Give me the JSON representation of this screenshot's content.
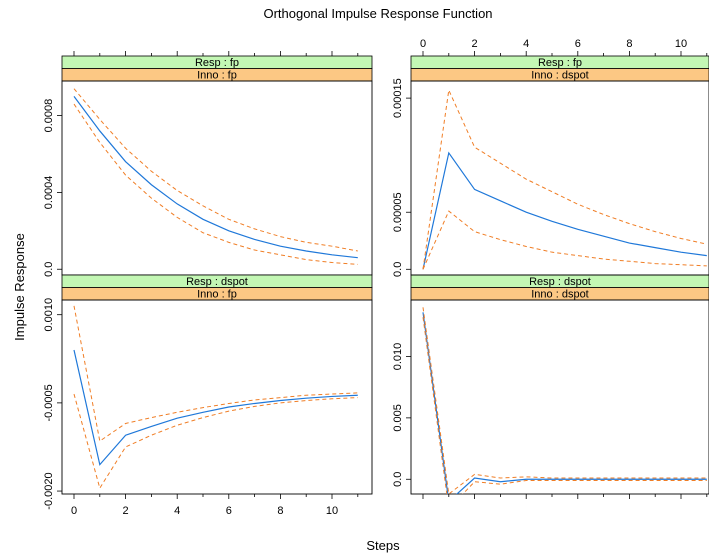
{
  "chart_data": {
    "type": "line",
    "title": "Orthogonal Impulse Response Function",
    "xlabel": "Steps",
    "ylabel": "Impulse Response",
    "xlim": [
      -0.5,
      11
    ],
    "x_ticks": [
      0,
      2,
      4,
      6,
      8,
      10
    ],
    "x": [
      0,
      1,
      2,
      3,
      4,
      5,
      6,
      7,
      8,
      9,
      10,
      11
    ],
    "colors": {
      "response": "#1f78d9",
      "bands": "#f07e26",
      "strip_resp": "#c3f7b4",
      "strip_inno": "#fcc884"
    },
    "panels": [
      {
        "id": "fp-fp",
        "resp_label": "Resp : fp",
        "inno_label": "Inno : fp",
        "ylim": [
          -3e-05,
          0.00098
        ],
        "y_ticks": [
          0.0,
          0.0004,
          0.0008
        ],
        "y_tick_labels": [
          "0.0",
          "0.0004",
          "0.0008"
        ],
        "series": [
          {
            "role": "response",
            "values": [
              0.0009,
              0.00072,
              0.00056,
              0.00044,
              0.00034,
              0.00026,
              0.0002,
              0.000155,
              0.00012,
              9.5e-05,
              7.5e-05,
              6e-05
            ]
          },
          {
            "role": "upper",
            "values": [
              0.00094,
              0.00078,
              0.00063,
              0.00051,
              0.00041,
              0.00033,
              0.00026,
              0.00021,
              0.00017,
              0.00014,
              0.00012,
              9.5e-05
            ]
          },
          {
            "role": "lower",
            "values": [
              0.00086,
              0.00066,
              0.00049,
              0.00037,
              0.00027,
              0.00019,
              0.00014,
              0.0001,
              7.5e-05,
              5e-05,
              3.5e-05,
              2.5e-05
            ]
          }
        ]
      },
      {
        "id": "dspot-dspot",
        "resp_label": "Resp : dspot",
        "inno_label": "Inno : dspot",
        "ylim": [
          -0.0012,
          0.0146
        ],
        "y_ticks": [
          0.0,
          0.005,
          0.01
        ],
        "y_tick_labels": [
          "0.0",
          "0.005",
          "0.010"
        ],
        "series": [
          {
            "role": "response",
            "values": [
              0.0136,
              -0.0018,
              0.0001,
              -0.0002,
              0.0,
              0.0,
              0.0,
              0.0,
              0.0,
              0.0,
              0.0,
              0.0
            ]
          },
          {
            "role": "upper",
            "values": [
              0.014,
              -0.0012,
              0.0004,
              0.0001,
              0.0002,
              0.0001,
              0.0001,
              0.0001,
              0.0001,
              0.0001,
              0.0001,
              0.0001
            ]
          },
          {
            "role": "lower",
            "values": [
              0.0132,
              -0.0024,
              -0.0002,
              -0.0004,
              -0.0001,
              -0.0001,
              -0.0001,
              -0.0001,
              -0.0001,
              -0.0001,
              -0.0001,
              -0.0001
            ]
          }
        ]
      },
      {
        "id": "fp-dspot",
        "resp_label": "Resp : fp",
        "inno_label": "Inno : dspot",
        "ylim": [
          -5e-06,
          0.000165
        ],
        "y_ticks": [
          0.0,
          5e-05,
          0.00015
        ],
        "y_tick_labels": [
          "0.0",
          "0.00005",
          "0.00015"
        ],
        "series": [
          {
            "role": "response",
            "values": [
              0.0,
              0.000102,
              7e-05,
              6e-05,
              5e-05,
              4.2e-05,
              3.5e-05,
              2.9e-05,
              2.3e-05,
              1.9e-05,
              1.5e-05,
              1.2e-05
            ]
          },
          {
            "role": "upper",
            "values": [
              0.0,
              0.000157,
              0.000107,
              9.3e-05,
              7.9e-05,
              6.8e-05,
              5.7e-05,
              4.8e-05,
              4e-05,
              3.3e-05,
              2.7e-05,
              2.2e-05
            ]
          },
          {
            "role": "lower",
            "values": [
              0.0,
              5.1e-05,
              3.3e-05,
              2.6e-05,
              2e-05,
              1.5e-05,
              1.2e-05,
              9e-06,
              7e-06,
              5e-06,
              4e-06,
              3e-06
            ]
          }
        ]
      },
      {
        "id": "dspot-fp",
        "resp_label": "Resp : dspot",
        "inno_label": "Inno : fp",
        "ylim": [
          -0.00205,
          0.00125
        ],
        "y_ticks": [
          0.001,
          -0.0005,
          -0.002
        ],
        "y_tick_labels": [
          "0.0010",
          "-0.0005",
          "-0.0020"
        ],
        "series": [
          {
            "role": "response",
            "values": [
              0.0004,
              -0.00155,
              -0.00105,
              -0.0009,
              -0.00076,
              -0.00066,
              -0.00057,
              -0.00051,
              -0.00046,
              -0.00042,
              -0.00039,
              -0.00037
            ]
          },
          {
            "role": "upper",
            "values": [
              0.00115,
              -0.00115,
              -0.00085,
              -0.00075,
              -0.00066,
              -0.00058,
              -0.00051,
              -0.00045,
              -0.00041,
              -0.00037,
              -0.00035,
              -0.00033
            ]
          },
          {
            "role": "lower",
            "values": [
              -0.00035,
              -0.00195,
              -0.00125,
              -0.00105,
              -0.00088,
              -0.00075,
              -0.00064,
              -0.00056,
              -0.0005,
              -0.00046,
              -0.00043,
              -0.00041
            ]
          }
        ]
      }
    ]
  }
}
